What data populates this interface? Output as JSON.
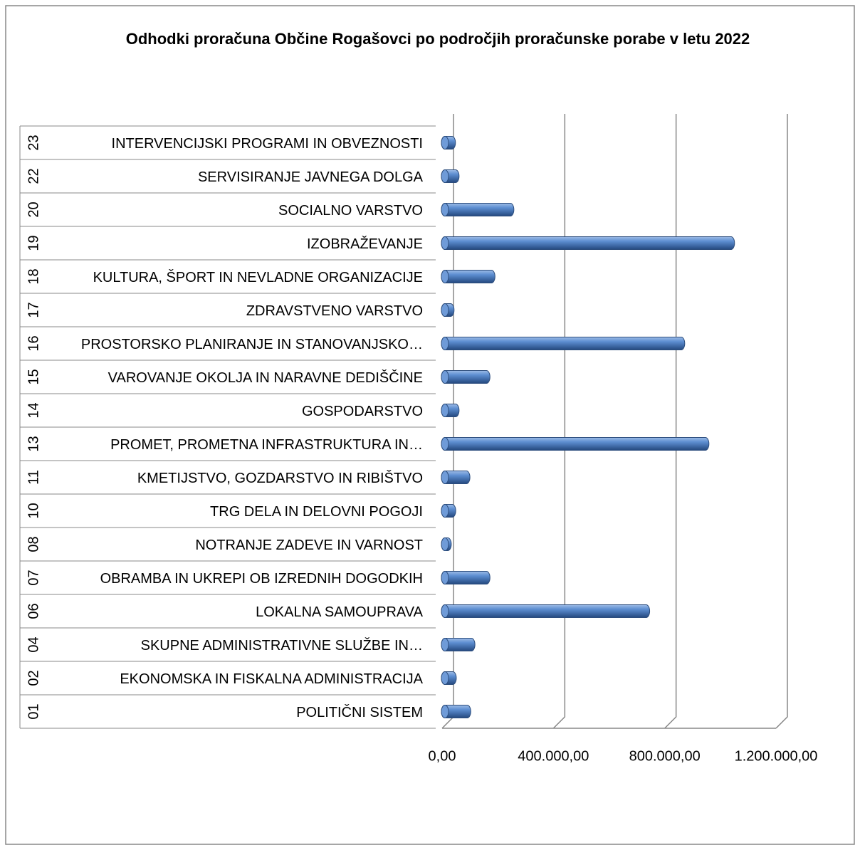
{
  "chart_data": {
    "type": "bar",
    "orientation": "horizontal",
    "title": "Odhodki proračuna Občine Rogašovci po področjih proračunske porabe v letu 2022",
    "category_codes": [
      "01",
      "02",
      "04",
      "06",
      "07",
      "08",
      "10",
      "11",
      "13",
      "14",
      "15",
      "16",
      "17",
      "18",
      "19",
      "20",
      "22",
      "23"
    ],
    "categories": [
      "POLITIČNI SISTEM",
      "EKONOMSKA IN FISKALNA ADMINISTRACIJA",
      "SKUPNE ADMINISTRATIVNE SLUŽBE IN…",
      "LOKALNA SAMOUPRAVA",
      "OBRAMBA IN UKREPI OB IZREDNIH DOGODKIH",
      "NOTRANJE ZADEVE IN VARNOST",
      "TRG DELA IN DELOVNI POGOJI",
      "KMETIJSTVO, GOZDARSTVO IN RIBIŠTVO",
      "PROMET, PROMETNA INFRASTRUKTURA IN…",
      "GOSPODARSTVO",
      "VAROVANJE OKOLJA IN NARAVNE DEDIŠČINE",
      "PROSTORSKO PLANIRANJE IN STANOVANJSKO…",
      "ZDRAVSTVENO VARSTVO",
      "KULTURA, ŠPORT IN NEVLADNE ORGANIZACIJE",
      "IZOBRAŽEVANJE",
      "SOCIALNO VARSTVO",
      "SERVISIRANJE JAVNEGA DOLGA",
      "INTERVENCIJSKI PROGRAMI IN OBVEZNOSTI"
    ],
    "values": [
      80000,
      28000,
      95000,
      723000,
      149000,
      10000,
      26000,
      77000,
      936000,
      38000,
      149000,
      849000,
      20000,
      167000,
      1028000,
      235000,
      38000,
      25000
    ],
    "color": "#4f81bd",
    "xlim": [
      0,
      1200000
    ],
    "xticks": [
      {
        "value": 0,
        "label": "0,00"
      },
      {
        "value": 400000,
        "label": "400.000,00"
      },
      {
        "value": 800000,
        "label": "800.000,00"
      },
      {
        "value": 1200000,
        "label": "1.200.000,00"
      }
    ],
    "grid": true
  }
}
